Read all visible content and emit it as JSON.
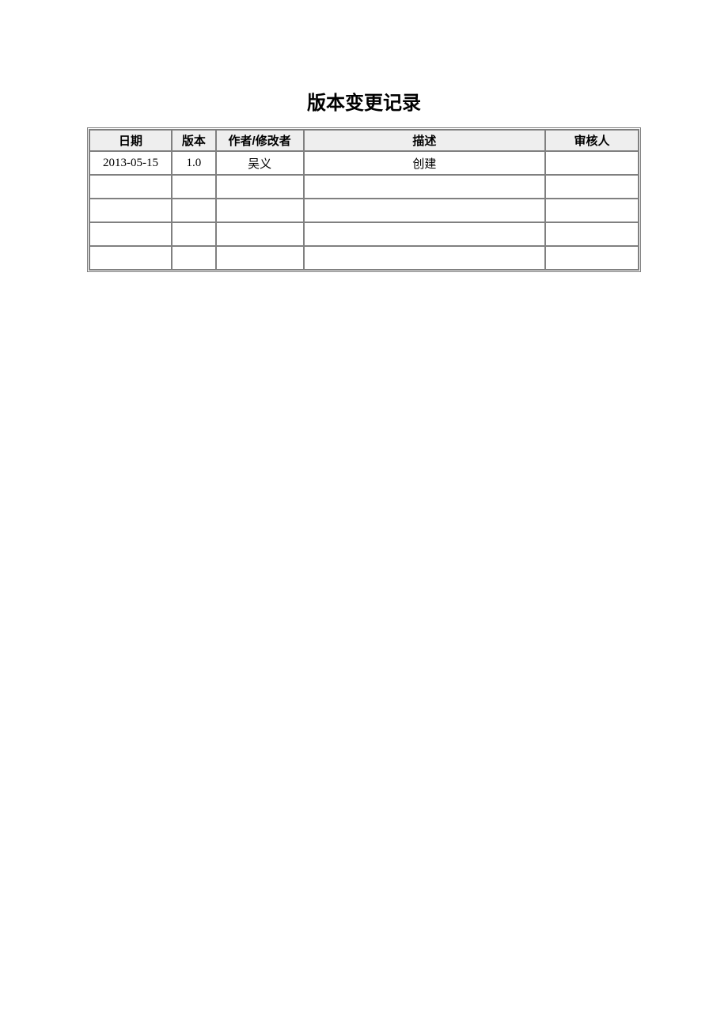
{
  "title": "版本变更记录",
  "table": {
    "columns": [
      "日期",
      "版本",
      "作者/修改者",
      "描述",
      "审核人"
    ],
    "column_widths_percent": [
      15,
      8,
      16,
      44,
      17
    ],
    "header_background": "#eeeeee",
    "border_color": "#808080",
    "outer_border_style": "double",
    "header_fontsize": 15,
    "cell_fontsize": 15,
    "title_fontsize": 24,
    "title_font_family": "SimHei",
    "header_font_family": "SimHei",
    "cell_font_family": "Times New Roman",
    "rows": [
      [
        "2013-05-15",
        "1.0",
        "吴义",
        "创建",
        ""
      ],
      [
        "",
        "",
        "",
        "",
        ""
      ],
      [
        "",
        "",
        "",
        "",
        ""
      ],
      [
        "",
        "",
        "",
        "",
        ""
      ],
      [
        "",
        "",
        "",
        "",
        ""
      ]
    ]
  }
}
